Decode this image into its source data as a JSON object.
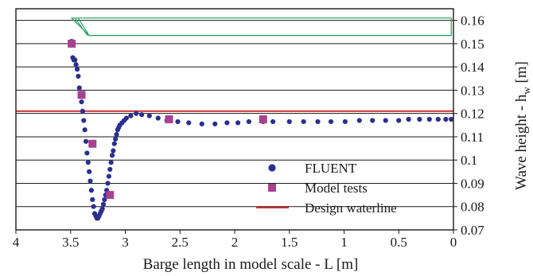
{
  "chart_data": {
    "type": "scatter",
    "xlabel": "Barge length in model scale - L [m]",
    "ylabel_main": "Wave height - h",
    "ylabel_sub": "w",
    "ylabel_tail": " [m]",
    "xlim": [
      4,
      0
    ],
    "ylim": [
      0.07,
      0.165
    ],
    "x_ticks": [
      4,
      3.5,
      3,
      2.5,
      2,
      1.5,
      1,
      0.5,
      0
    ],
    "x_tick_labels": [
      "4",
      "3.5",
      "3",
      "2.5",
      "2",
      "1.5",
      "1",
      "0.5",
      "0"
    ],
    "y_ticks": [
      0.07,
      0.08,
      0.09,
      0.1,
      0.11,
      0.12,
      0.13,
      0.14,
      0.15,
      0.16
    ],
    "y_tick_labels": [
      "0.07",
      "0.08",
      "0.09",
      "0.1",
      "0.11",
      "0.12",
      "0.13",
      "0.14",
      "0.15",
      "0.16"
    ],
    "grid": "horizontal",
    "axis_side_y": "right",
    "legend_position": "lower-right",
    "series": [
      {
        "name": "FLUENT",
        "kind": "scatter",
        "marker": "circle",
        "color": "#2b2f8f",
        "x": [
          3.49,
          3.48,
          3.47,
          3.46,
          3.45,
          3.44,
          3.43,
          3.42,
          3.41,
          3.4,
          3.39,
          3.38,
          3.37,
          3.36,
          3.35,
          3.34,
          3.33,
          3.32,
          3.31,
          3.3,
          3.29,
          3.28,
          3.27,
          3.26,
          3.25,
          3.24,
          3.23,
          3.22,
          3.21,
          3.2,
          3.19,
          3.18,
          3.17,
          3.16,
          3.15,
          3.14,
          3.13,
          3.12,
          3.11,
          3.1,
          3.09,
          3.08,
          3.07,
          3.06,
          3.05,
          3.03,
          3.01,
          2.99,
          2.95,
          2.9,
          2.85,
          2.78,
          2.7,
          2.62,
          2.52,
          2.42,
          2.3,
          2.18,
          2.07,
          1.97,
          1.87,
          1.74,
          1.65,
          1.5,
          1.37,
          1.24,
          1.12,
          0.99,
          0.86,
          0.74,
          0.62,
          0.5,
          0.41,
          0.31,
          0.22,
          0.14,
          0.07,
          0.02
        ],
        "y": [
          0.151,
          0.144,
          0.143,
          0.143,
          0.141,
          0.139,
          0.136,
          0.131,
          0.128,
          0.125,
          0.121,
          0.117,
          0.113,
          0.108,
          0.103,
          0.099,
          0.095,
          0.091,
          0.087,
          0.083,
          0.08,
          0.077,
          0.076,
          0.075,
          0.075,
          0.076,
          0.077,
          0.078,
          0.079,
          0.081,
          0.083,
          0.085,
          0.087,
          0.09,
          0.093,
          0.096,
          0.099,
          0.102,
          0.104,
          0.107,
          0.109,
          0.111,
          0.113,
          0.114,
          0.115,
          0.116,
          0.117,
          0.118,
          0.119,
          0.12,
          0.1195,
          0.119,
          0.118,
          0.117,
          0.1165,
          0.116,
          0.1155,
          0.1155,
          0.116,
          0.116,
          0.1165,
          0.1165,
          0.1165,
          0.1165,
          0.1165,
          0.1165,
          0.1165,
          0.1165,
          0.117,
          0.117,
          0.117,
          0.117,
          0.1175,
          0.1175,
          0.1175,
          0.1175,
          0.1175,
          0.1175
        ]
      },
      {
        "name": "Model tests",
        "kind": "scatter",
        "marker": "square",
        "color": "#a6428f",
        "x": [
          3.49,
          3.4,
          3.3,
          3.14,
          2.6,
          1.74
        ],
        "y": [
          0.15,
          0.128,
          0.107,
          0.085,
          0.1175,
          0.1175
        ]
      },
      {
        "name": "Design waterline",
        "kind": "hline",
        "color": "#d42b2b",
        "y": 0.121
      }
    ],
    "barge_outline": {
      "color": "#1fa05a",
      "top": 0.161,
      "bottom": 0.1535,
      "bow_top_x": 3.49,
      "bow_bottom_x": 3.33,
      "stern_x": 0.02
    }
  }
}
